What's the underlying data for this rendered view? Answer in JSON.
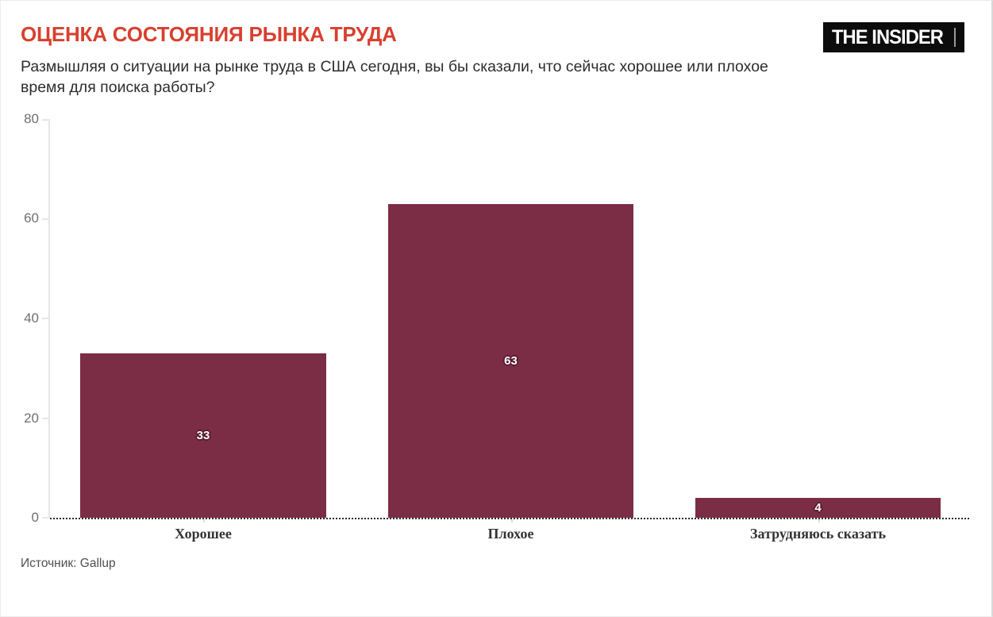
{
  "page": {
    "title": "ОЦЕНКА СОСТОЯНИЯ РЫНКА ТРУДА",
    "subtitle": "Размышляя о ситуации на рынке труда в США сегодня, вы бы сказали, что сейчас хорошее или плохое время для поиска работы?",
    "source": "Источник: Gallup",
    "brand": "THE INSIDER",
    "accent_color": "#d8402f"
  },
  "chart_data": {
    "type": "bar",
    "title": "ОЦЕНКА СОСТОЯНИЯ РЫНКА ТРУДА",
    "categories": [
      "Хорошее",
      "Плохое",
      "Затрудняюсь сказать"
    ],
    "values": [
      33,
      63,
      4
    ],
    "value_labels": [
      "33",
      "63",
      "4"
    ],
    "xlabel": "",
    "ylabel": "",
    "ylim": [
      0,
      80
    ],
    "yticks": [
      0,
      20,
      40,
      60,
      80
    ],
    "bar_color": "#7b2d45",
    "grid": "off",
    "legend": "none",
    "baseline_style": "dotted"
  }
}
